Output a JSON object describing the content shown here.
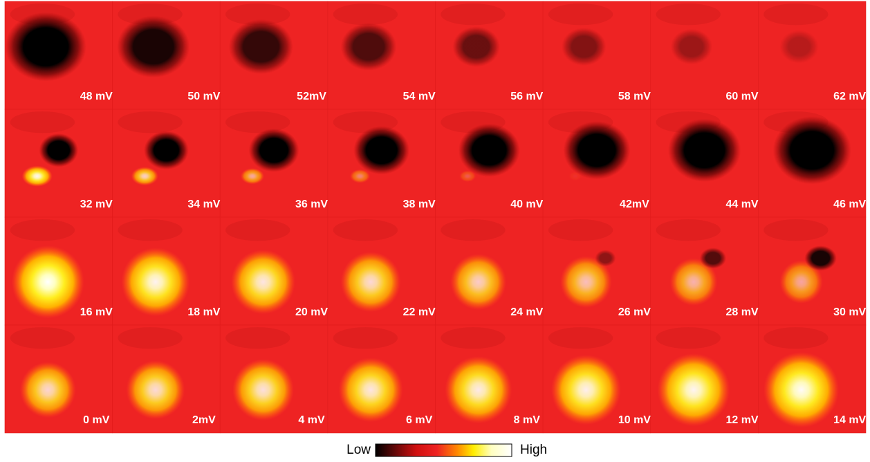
{
  "rows": [
    [
      "48 mV",
      "50 mV",
      "52mV",
      "54 mV",
      "56 mV",
      "58 mV",
      "60 mV",
      "62 mV"
    ],
    [
      "32 mV",
      "34 mV",
      "36 mV",
      "38 mV",
      "40 mV",
      "42mV",
      "44 mV",
      "46 mV"
    ],
    [
      "16 mV",
      "18 mV",
      "20 mV",
      "22 mV",
      "24 mV",
      "26 mV",
      "28 mV",
      "30 mV"
    ],
    [
      "0 mV",
      "2mV",
      "4 mV",
      "6 mV",
      "8 mV",
      "10 mV",
      "12 mV",
      "14 mV"
    ]
  ],
  "colorbar": {
    "low": "Low",
    "high": "High"
  }
}
